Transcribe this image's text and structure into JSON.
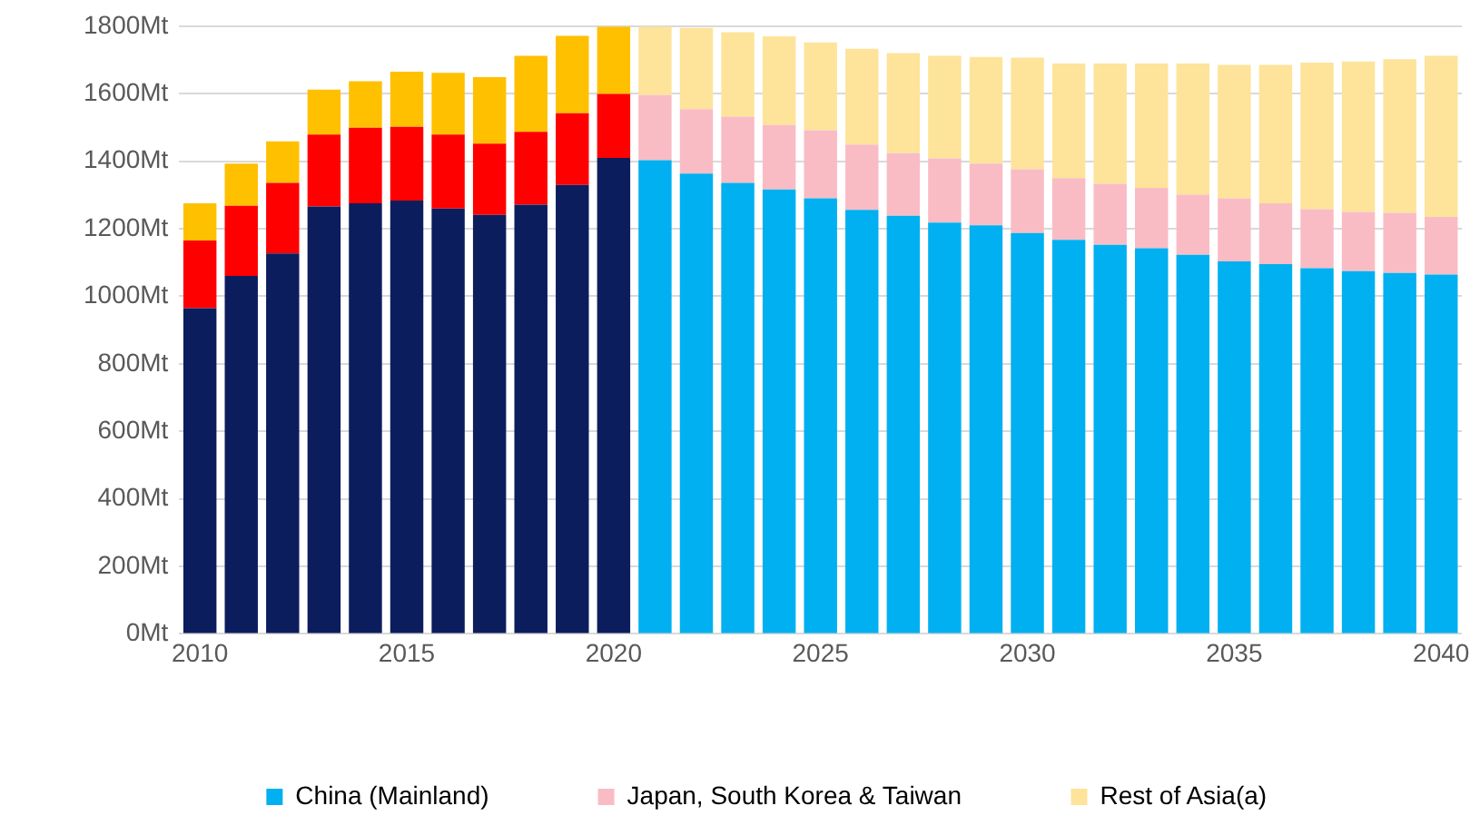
{
  "chart_data": {
    "type": "bar",
    "stacked": true,
    "categories": [
      "2010",
      null,
      null,
      null,
      null,
      "2015",
      null,
      null,
      null,
      null,
      "2020",
      null,
      null,
      null,
      null,
      "2025",
      null,
      null,
      null,
      null,
      "2030",
      null,
      null,
      null,
      null,
      "2035",
      null,
      null,
      null,
      null,
      "2040"
    ],
    "series": [
      {
        "name": "China (Mainland)",
        "color": "#00b0f0",
        "colors": [
          "#0c1d5e",
          "#0c1d5e",
          "#0c1d5e",
          "#0c1d5e",
          "#0c1d5e",
          "#0c1d5e",
          "#0c1d5e",
          "#0c1d5e",
          "#0c1d5e",
          "#0c1d5e",
          "#0c1d5e",
          "#00b0f0",
          "#00b0f0",
          "#00b0f0",
          "#00b0f0",
          "#00b0f0",
          "#00b0f0",
          "#00b0f0",
          "#00b0f0",
          "#00b0f0",
          "#00b0f0",
          "#00b0f0",
          "#00b0f0",
          "#00b0f0",
          "#00b0f0",
          "#00b0f0",
          "#00b0f0",
          "#00b0f0",
          "#00b0f0",
          "#00b0f0",
          "#00b0f0"
        ],
        "values": [
          965,
          1060,
          1127,
          1266,
          1275,
          1283,
          1260,
          1241,
          1271,
          1330,
          1410,
          1403,
          1363,
          1336,
          1316,
          1290,
          1256,
          1238,
          1218,
          1210,
          1187,
          1167,
          1152,
          1142,
          1123,
          1103,
          1095,
          1083,
          1074,
          1069,
          1064
        ]
      },
      {
        "name": "Japan, South Korea & Taiwan",
        "color": "#f9bcc4",
        "colors": [
          "#ff0000",
          "#ff0000",
          "#ff0000",
          "#ff0000",
          "#ff0000",
          "#ff0000",
          "#ff0000",
          "#ff0000",
          "#ff0000",
          "#ff0000",
          "#ff0000",
          "#f9bcc4",
          "#f9bcc4",
          "#f9bcc4",
          "#f9bcc4",
          "#f9bcc4",
          "#f9bcc4",
          "#f9bcc4",
          "#f9bcc4",
          "#f9bcc4",
          "#f9bcc4",
          "#f9bcc4",
          "#f9bcc4",
          "#f9bcc4",
          "#f9bcc4",
          "#f9bcc4",
          "#f9bcc4",
          "#f9bcc4",
          "#f9bcc4",
          "#f9bcc4",
          "#f9bcc4"
        ],
        "values": [
          200,
          208,
          209,
          213,
          224,
          219,
          219,
          211,
          216,
          212,
          189,
          193,
          191,
          196,
          191,
          202,
          193,
          186,
          190,
          183,
          189,
          183,
          181,
          179,
          178,
          187,
          180,
          175,
          176,
          178,
          171
        ]
      },
      {
        "name": "Rest of Asia(a)",
        "color": "#fde49a",
        "colors": [
          "#ffc000",
          "#ffc000",
          "#ffc000",
          "#ffc000",
          "#ffc000",
          "#ffc000",
          "#ffc000",
          "#ffc000",
          "#ffc000",
          "#ffc000",
          "#ffc000",
          "#fde49a",
          "#fde49a",
          "#fde49a",
          "#fde49a",
          "#fde49a",
          "#fde49a",
          "#fde49a",
          "#fde49a",
          "#fde49a",
          "#fde49a",
          "#fde49a",
          "#fde49a",
          "#fde49a",
          "#fde49a",
          "#fde49a",
          "#fde49a",
          "#fde49a",
          "#fde49a",
          "#fde49a",
          "#fde49a"
        ],
        "values": [
          110,
          125,
          123,
          133,
          138,
          163,
          183,
          197,
          225,
          229,
          199,
          202,
          241,
          250,
          263,
          260,
          284,
          296,
          304,
          316,
          331,
          339,
          356,
          368,
          388,
          395,
          410,
          434,
          445,
          455,
          477
        ]
      }
    ],
    "ylim": [
      0,
      1800
    ],
    "yticks": [
      {
        "value": 0,
        "label": "0Mt"
      },
      {
        "value": 200,
        "label": "200Mt"
      },
      {
        "value": 400,
        "label": "400Mt"
      },
      {
        "value": 600,
        "label": "600Mt"
      },
      {
        "value": 800,
        "label": "800Mt"
      },
      {
        "value": 1000,
        "label": "1000Mt"
      },
      {
        "value": 1200,
        "label": "1200Mt"
      },
      {
        "value": 1400,
        "label": "1400Mt"
      },
      {
        "value": 1600,
        "label": "1600Mt"
      },
      {
        "value": 1800,
        "label": "1800Mt"
      }
    ],
    "grid": "y",
    "legend": "bottom"
  }
}
